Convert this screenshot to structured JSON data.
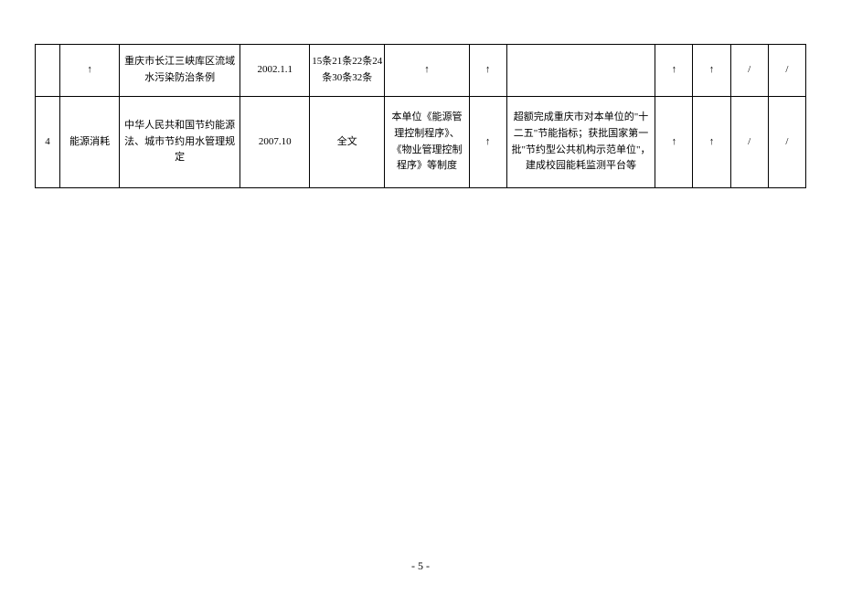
{
  "table": {
    "cols": [
      "c0",
      "c1",
      "c2",
      "c3",
      "c4",
      "c5",
      "c6",
      "c7",
      "c8",
      "c9",
      "c10",
      "c11"
    ],
    "rows": [
      {
        "heightPx": 57,
        "cells": [
          {
            "bind": "table.rows.0.cells.0",
            "text": ""
          },
          {
            "bind": "table.rows.0.cells.1",
            "text": "↑",
            "arrow": true
          },
          {
            "bind": "table.rows.0.cells.2",
            "text": "重庆市长江三峡库区流域水污染防治条例"
          },
          {
            "bind": "table.rows.0.cells.3",
            "text": "2002.1.1"
          },
          {
            "bind": "table.rows.0.cells.4",
            "text": "15条21条22条24条30条32条"
          },
          {
            "bind": "table.rows.0.cells.5",
            "text": "↑",
            "arrow": true
          },
          {
            "bind": "table.rows.0.cells.6",
            "text": "↑",
            "arrow": true
          },
          {
            "bind": "table.rows.0.cells.7",
            "text": ""
          },
          {
            "bind": "table.rows.0.cells.8",
            "text": "↑",
            "arrow": true
          },
          {
            "bind": "table.rows.0.cells.9",
            "text": "↑",
            "arrow": true
          },
          {
            "bind": "table.rows.0.cells.10",
            "text": "/"
          },
          {
            "bind": "table.rows.0.cells.11",
            "text": "/"
          }
        ]
      },
      {
        "heightPx": 100,
        "cells": [
          {
            "bind": "table.rows.1.cells.0",
            "text": "4"
          },
          {
            "bind": "table.rows.1.cells.1",
            "text": "能源消耗"
          },
          {
            "bind": "table.rows.1.cells.2",
            "text": "中华人民共和国节约能源法、城市节约用水管理规定"
          },
          {
            "bind": "table.rows.1.cells.3",
            "text": "2007.10"
          },
          {
            "bind": "table.rows.1.cells.4",
            "text": "全文"
          },
          {
            "bind": "table.rows.1.cells.5",
            "text": "本单位《能源管理控制程序》、《物业管理控制程序》等制度"
          },
          {
            "bind": "table.rows.1.cells.6",
            "text": "↑",
            "arrow": true
          },
          {
            "bind": "table.rows.1.cells.7",
            "text": "超额完成重庆市对本单位的\"十二五\"节能指标；获批国家第一批\"节约型公共机构示范单位\"，建成校园能耗监测平台等"
          },
          {
            "bind": "table.rows.1.cells.8",
            "text": "↑",
            "arrow": true
          },
          {
            "bind": "table.rows.1.cells.9",
            "text": "↑",
            "arrow": true
          },
          {
            "bind": "table.rows.1.cells.10",
            "text": "/"
          },
          {
            "bind": "table.rows.1.cells.11",
            "text": "/"
          }
        ]
      }
    ]
  },
  "footer": {
    "pageLabel": "- 5 -"
  }
}
